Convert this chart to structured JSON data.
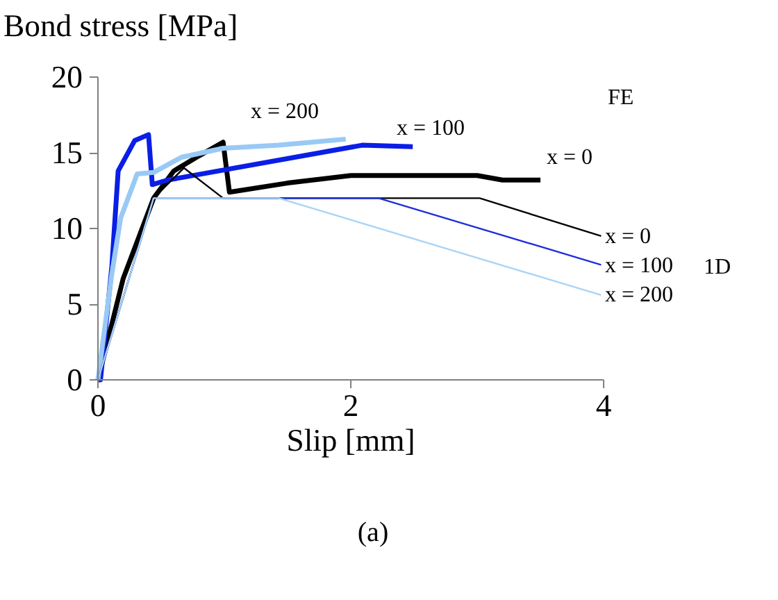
{
  "chart_data": {
    "type": "line",
    "ylabel": "Bond stress [MPa]",
    "xlabel": "Slip [mm]",
    "xlim": [
      0,
      4
    ],
    "ylim": [
      0,
      20
    ],
    "xticks": [
      0,
      2,
      4
    ],
    "yticks": [
      0,
      5,
      10,
      15,
      20
    ],
    "grid": false,
    "marker": "none",
    "line_style": "solid",
    "series": [
      {
        "color": "#000000",
        "x": [
          0,
          0.2,
          0.44,
          0.6,
          0.8,
          0.99,
          1.04,
          1.5,
          2.0,
          3.0,
          3.2,
          3.5
        ],
        "values": [
          0,
          6.7,
          12.0,
          13.8,
          14.8,
          15.7,
          12.4,
          13.0,
          13.5,
          13.5,
          13.2,
          13.2
        ]
      },
      {
        "color": "#0a1ee6",
        "x": [
          0,
          0.02,
          0.11,
          0.16,
          0.29,
          0.4,
          0.43,
          0.55,
          2.09,
          2.49
        ],
        "values": [
          0,
          0,
          7.5,
          13.8,
          15.8,
          16.2,
          12.9,
          13.2,
          15.5,
          15.4
        ]
      },
      {
        "color": "#99c9f5",
        "x": [
          0,
          0.11,
          0.18,
          0.31,
          0.44,
          0.66,
          0.99,
          1.43,
          1.96
        ],
        "values": [
          0,
          7.0,
          10.7,
          13.6,
          13.7,
          14.7,
          15.3,
          15.5,
          15.9
        ]
      },
      {
        "color": "#000000",
        "x": [
          0,
          0.44,
          0.68,
          0.99,
          3.02,
          3.98
        ],
        "values": [
          0,
          12.0,
          14.0,
          12.0,
          12.0,
          9.5
        ]
      },
      {
        "color": "#1f2fdc",
        "x": [
          0,
          0.44,
          2.22,
          3.98
        ],
        "values": [
          0,
          12.0,
          12.0,
          7.6
        ]
      },
      {
        "color": "#a8d4f7",
        "x": [
          0,
          0.44,
          1.43,
          3.98
        ],
        "values": [
          0,
          12.0,
          12.0,
          5.6
        ]
      }
    ],
    "annotations": [
      "x = 200",
      "x = 100",
      "x = 0",
      "x = 0",
      "x = 100",
      "x = 200",
      "FE",
      "1D",
      "(a)"
    ]
  }
}
